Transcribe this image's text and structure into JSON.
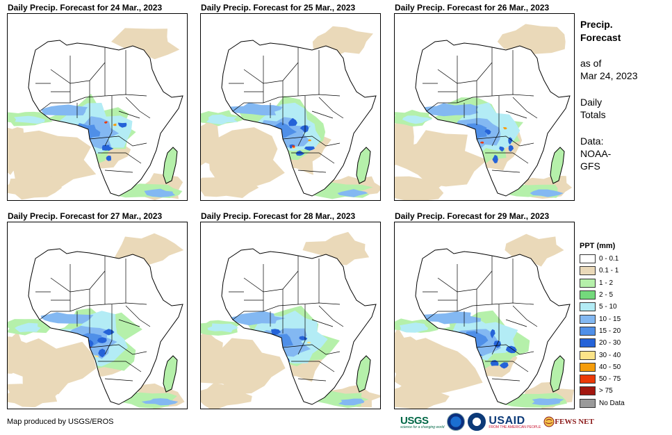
{
  "panels": [
    {
      "title": "Daily Precip. Forecast for 24 Mar., 2023"
    },
    {
      "title": "Daily Precip. Forecast for 25 Mar., 2023"
    },
    {
      "title": "Daily Precip. Forecast for 26 Mar., 2023"
    },
    {
      "title": "Daily Precip. Forecast for 27 Mar., 2023"
    },
    {
      "title": "Daily Precip. Forecast for 28 Mar., 2023"
    },
    {
      "title": "Daily Precip. Forecast for 29 Mar., 2023"
    }
  ],
  "side": {
    "heading_line1": "Precip.",
    "heading_line2": "Forecast",
    "asof_line1": "as of",
    "asof_line2": "Mar 24, 2023",
    "totals_line1": "Daily",
    "totals_line2": "Totals",
    "data_line1": "Data:",
    "data_line2": "NOAA-",
    "data_line3": "GFS"
  },
  "legend": {
    "title": "PPT (mm)",
    "items": [
      {
        "label": "0 - 0.1",
        "color": "#ffffff"
      },
      {
        "label": "0.1 - 1",
        "color": "#ead9b9"
      },
      {
        "label": "1 - 2",
        "color": "#b5f0aa"
      },
      {
        "label": "2 - 5",
        "color": "#74d97c"
      },
      {
        "label": "5 - 10",
        "color": "#b3ecf5"
      },
      {
        "label": "10 - 15",
        "color": "#83b8f2"
      },
      {
        "label": "15 - 20",
        "color": "#4f8fe8"
      },
      {
        "label": "20 - 30",
        "color": "#2563d8"
      },
      {
        "label": "30 - 40",
        "color": "#fbe489"
      },
      {
        "label": "40 - 50",
        "color": "#f59d0c"
      },
      {
        "label": "50 - 75",
        "color": "#eb3a08"
      },
      {
        "label": "> 75",
        "color": "#a3170f"
      },
      {
        "label": "No Data",
        "color": "#9a9a9a"
      }
    ]
  },
  "credit": "Map produced by USGS/EROS",
  "logos": {
    "usgs": "USGS",
    "usgs_tagline": "science for a changing world",
    "usaid": "USAID",
    "usaid_tagline": "FROM THE AMERICAN PEOPLE",
    "fews": "FEWS NET"
  }
}
